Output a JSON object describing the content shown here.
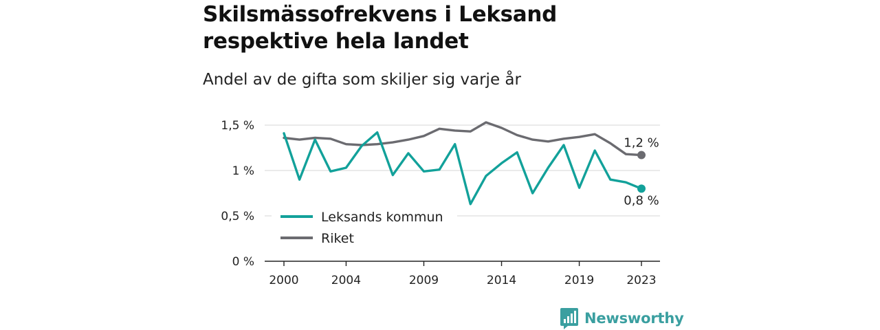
{
  "title": "Skilsmässofrekvens i Leksand respektive hela landet",
  "subtitle": "Andel av de gifta som skiljer sig varje år",
  "brand": {
    "name": "Newsworthy",
    "icon": "newsworthy-logo-icon"
  },
  "colors": {
    "leksand": "#12a19a",
    "riket": "#6b6b70",
    "grid": "#dddddd",
    "axis": "#222222",
    "brand": "#3a9fa0"
  },
  "chart_data": {
    "type": "line",
    "x": [
      2000,
      2001,
      2002,
      2003,
      2004,
      2005,
      2006,
      2007,
      2008,
      2009,
      2010,
      2011,
      2012,
      2013,
      2014,
      2015,
      2016,
      2017,
      2018,
      2019,
      2020,
      2021,
      2022,
      2023
    ],
    "xticks": [
      2000,
      2004,
      2009,
      2014,
      2019,
      2023
    ],
    "xtick_labels": [
      "2000",
      "2004",
      "2009",
      "2014",
      "2019",
      "2023"
    ],
    "xlim": [
      2000,
      2023
    ],
    "ylim": [
      0,
      1.5
    ],
    "yticks": [
      0,
      0.5,
      1,
      1.5
    ],
    "ytick_labels": [
      "0 %",
      "0,5 %",
      "1 %",
      "1,5 %"
    ],
    "grid": true,
    "legend_position": "bottom-left",
    "series": [
      {
        "name": "Leksands kommun",
        "key": "leksand",
        "values": [
          1.41,
          0.9,
          1.34,
          0.99,
          1.03,
          1.27,
          1.42,
          0.95,
          1.19,
          0.99,
          1.01,
          1.29,
          0.63,
          0.94,
          1.08,
          1.2,
          0.75,
          1.03,
          1.28,
          0.81,
          1.22,
          0.9,
          0.87,
          0.8
        ],
        "end_label": "0,8 %"
      },
      {
        "name": "Riket",
        "key": "riket",
        "values": [
          1.36,
          1.34,
          1.36,
          1.35,
          1.29,
          1.28,
          1.29,
          1.31,
          1.34,
          1.38,
          1.46,
          1.44,
          1.43,
          1.53,
          1.47,
          1.39,
          1.34,
          1.32,
          1.35,
          1.37,
          1.4,
          1.3,
          1.18,
          1.17
        ],
        "end_label": "1,2 %"
      }
    ]
  }
}
